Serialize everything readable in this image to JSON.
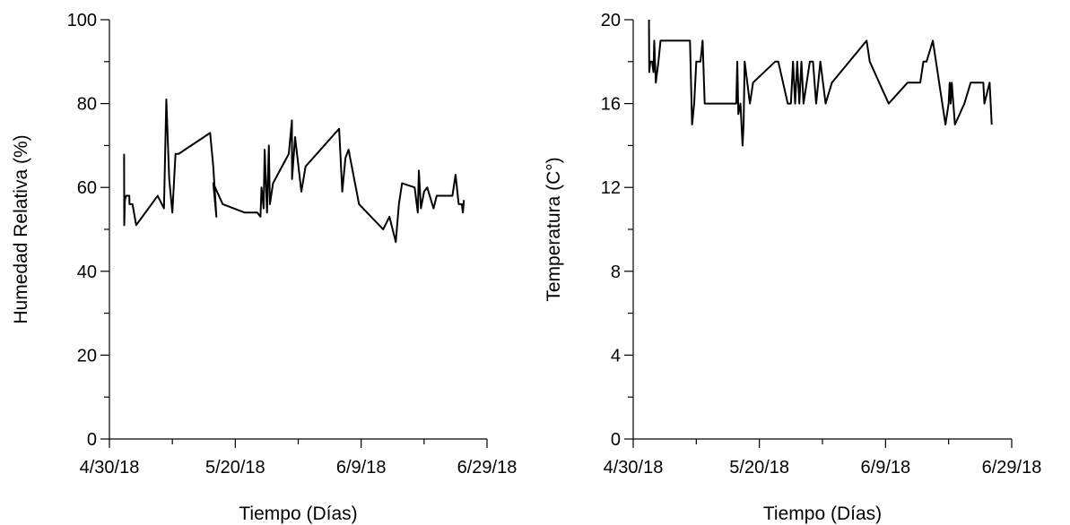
{
  "chart_data": [
    {
      "type": "line",
      "title": "",
      "xlabel": "Tiempo (Días)",
      "ylabel": "Humedad Relativa (%)",
      "xlim": [
        "2018-04-30",
        "2018-06-29"
      ],
      "ylim": [
        0,
        100
      ],
      "x_tick_labels": [
        "4/30/18",
        "5/20/18",
        "6/9/18",
        "6/29/18"
      ],
      "x_tick_values": [
        "2018-04-30",
        "2018-05-20",
        "2018-06-09",
        "2018-06-29"
      ],
      "y_ticks": [
        0,
        20,
        40,
        60,
        80,
        100
      ],
      "grid": false,
      "legend": "none",
      "series": [
        {
          "x": [
            "2018-05-02T08:00",
            "2018-05-02T08:30",
            "2018-05-02T11:00",
            "2018-05-02T16:00",
            "2018-05-03T04:00",
            "2018-05-03T04:30",
            "2018-05-03T16:00",
            "2018-05-04T06:00",
            "2018-05-07T16:00",
            "2018-05-08T16:00",
            "2018-05-09T01:00",
            "2018-05-09T12:00",
            "2018-05-10T00:00",
            "2018-05-10T12:00",
            "2018-05-11T00:00",
            "2018-05-16T00:00",
            "2018-05-16T12:00",
            "2018-05-17T00:00",
            "2018-05-16T12:00",
            "2018-05-18T00:00",
            "2018-05-21T12:00",
            "2018-05-22T00:00",
            "2018-05-23T12:00",
            "2018-05-24T00:00",
            "2018-05-24T04:00",
            "2018-05-24T12:00",
            "2018-05-24T16:00",
            "2018-05-25T01:00",
            "2018-05-25T08:00",
            "2018-05-25T12:00",
            "2018-05-26T00:00",
            "2018-05-28T12:00",
            "2018-05-29T00:00",
            "2018-05-29T00:30",
            "2018-05-29T12:00",
            "2018-05-30T12:00",
            "2018-05-31T04:00",
            "2018-06-05T12:00",
            "2018-06-06T00:00",
            "2018-06-06T12:00",
            "2018-06-07T00:00",
            "2018-06-08T16:00",
            "2018-06-12T12:00",
            "2018-06-13T12:00",
            "2018-06-14T12:00",
            "2018-06-15T00:00",
            "2018-06-15T12:00",
            "2018-06-17T12:00",
            "2018-06-18T00:00",
            "2018-06-18T04:00",
            "2018-06-18T12:00",
            "2018-06-19T00:00",
            "2018-06-19T12:00",
            "2018-06-20T12:00",
            "2018-06-21T00:00",
            "2018-06-23T12:00",
            "2018-06-24T00:00",
            "2018-06-24T12:00",
            "2018-06-25T00:00",
            "2018-06-25T04:00",
            "2018-06-25T08:00"
          ],
          "y": [
            68,
            51,
            57,
            58,
            58,
            56,
            56,
            51,
            58,
            55,
            81,
            62,
            54,
            68,
            68,
            73,
            65,
            53,
            61,
            56,
            54,
            54,
            54,
            53,
            60,
            55,
            69,
            54,
            70,
            56,
            61,
            68,
            76,
            62,
            72,
            59,
            65,
            74,
            59,
            67,
            69,
            56,
            50,
            53,
            47,
            56,
            61,
            60,
            54,
            64,
            55,
            59,
            60,
            55,
            58,
            58,
            63,
            56,
            56,
            54,
            57
          ]
        }
      ]
    },
    {
      "type": "line",
      "title": "",
      "xlabel": "Tiempo (Días)",
      "ylabel": "Temperatura (C°)",
      "xlim": [
        "2018-04-30",
        "2018-06-29"
      ],
      "ylim": [
        0,
        20
      ],
      "x_tick_labels": [
        "4/30/18",
        "5/20/18",
        "6/9/18",
        "6/29/18"
      ],
      "x_tick_values": [
        "2018-04-30",
        "2018-05-20",
        "2018-06-09",
        "2018-06-29"
      ],
      "y_ticks": [
        0,
        4,
        8,
        12,
        16,
        20
      ],
      "grid": false,
      "legend": "none",
      "series": [
        {
          "x": [
            "2018-05-02T12:00",
            "2018-05-02T13:00",
            "2018-05-02T17:00",
            "2018-05-03T00:00",
            "2018-05-03T05:00",
            "2018-05-03T08:00",
            "2018-05-03T14:00",
            "2018-05-04T00:00",
            "2018-05-04T08:00",
            "2018-05-05T00:00",
            "2018-05-09T00:00",
            "2018-05-09T08:00",
            "2018-05-09T16:00",
            "2018-05-10T00:00",
            "2018-05-10T16:00",
            "2018-05-11T00:00",
            "2018-05-11T08:00",
            "2018-05-16T08:00",
            "2018-05-16T12:00",
            "2018-05-16T16:00",
            "2018-05-17T00:00",
            "2018-05-17T08:00",
            "2018-05-17T12:00",
            "2018-05-17T16:00",
            "2018-05-18T12:00",
            "2018-05-19T00:00",
            "2018-05-22T12:00",
            "2018-05-23T00:00",
            "2018-05-24T12:00",
            "2018-05-25T00:00",
            "2018-05-25T08:00",
            "2018-05-25T16:00",
            "2018-05-26T00:00",
            "2018-05-26T08:00",
            "2018-05-26T16:00",
            "2018-05-27T00:00",
            "2018-05-28T00:00",
            "2018-05-28T12:00",
            "2018-05-29T00:00",
            "2018-05-29T16:00",
            "2018-05-30T12:00",
            "2018-05-31T12:00",
            "2018-06-06T00:00",
            "2018-06-06T12:00",
            "2018-06-09T12:00",
            "2018-06-12T12:00",
            "2018-06-13T12:00",
            "2018-06-14T12:00",
            "2018-06-15T00:00",
            "2018-06-15T12:00",
            "2018-06-16T12:00",
            "2018-06-18T12:00",
            "2018-06-19T00:00",
            "2018-06-19T04:00",
            "2018-06-19T08:00",
            "2018-06-19T12:00",
            "2018-06-20T00:00",
            "2018-06-21T12:00",
            "2018-06-22T12:00",
            "2018-06-24T12:00",
            "2018-06-24T16:00",
            "2018-06-25T12:00",
            "2018-06-25T20:00"
          ],
          "y": [
            20,
            17.5,
            18,
            18,
            17.5,
            19,
            17,
            18,
            19,
            19,
            19,
            15,
            16,
            18,
            18,
            19,
            16,
            16,
            18,
            15.5,
            16,
            14,
            15,
            18,
            16,
            17,
            18,
            18,
            16,
            16,
            18,
            16,
            18,
            16,
            18,
            16,
            18,
            18,
            16,
            18,
            16,
            17,
            19,
            18,
            16,
            17,
            17,
            17,
            18,
            18,
            19,
            15,
            16,
            17,
            16,
            17,
            15,
            16,
            17,
            17,
            16,
            17,
            15
          ]
        }
      ]
    }
  ]
}
